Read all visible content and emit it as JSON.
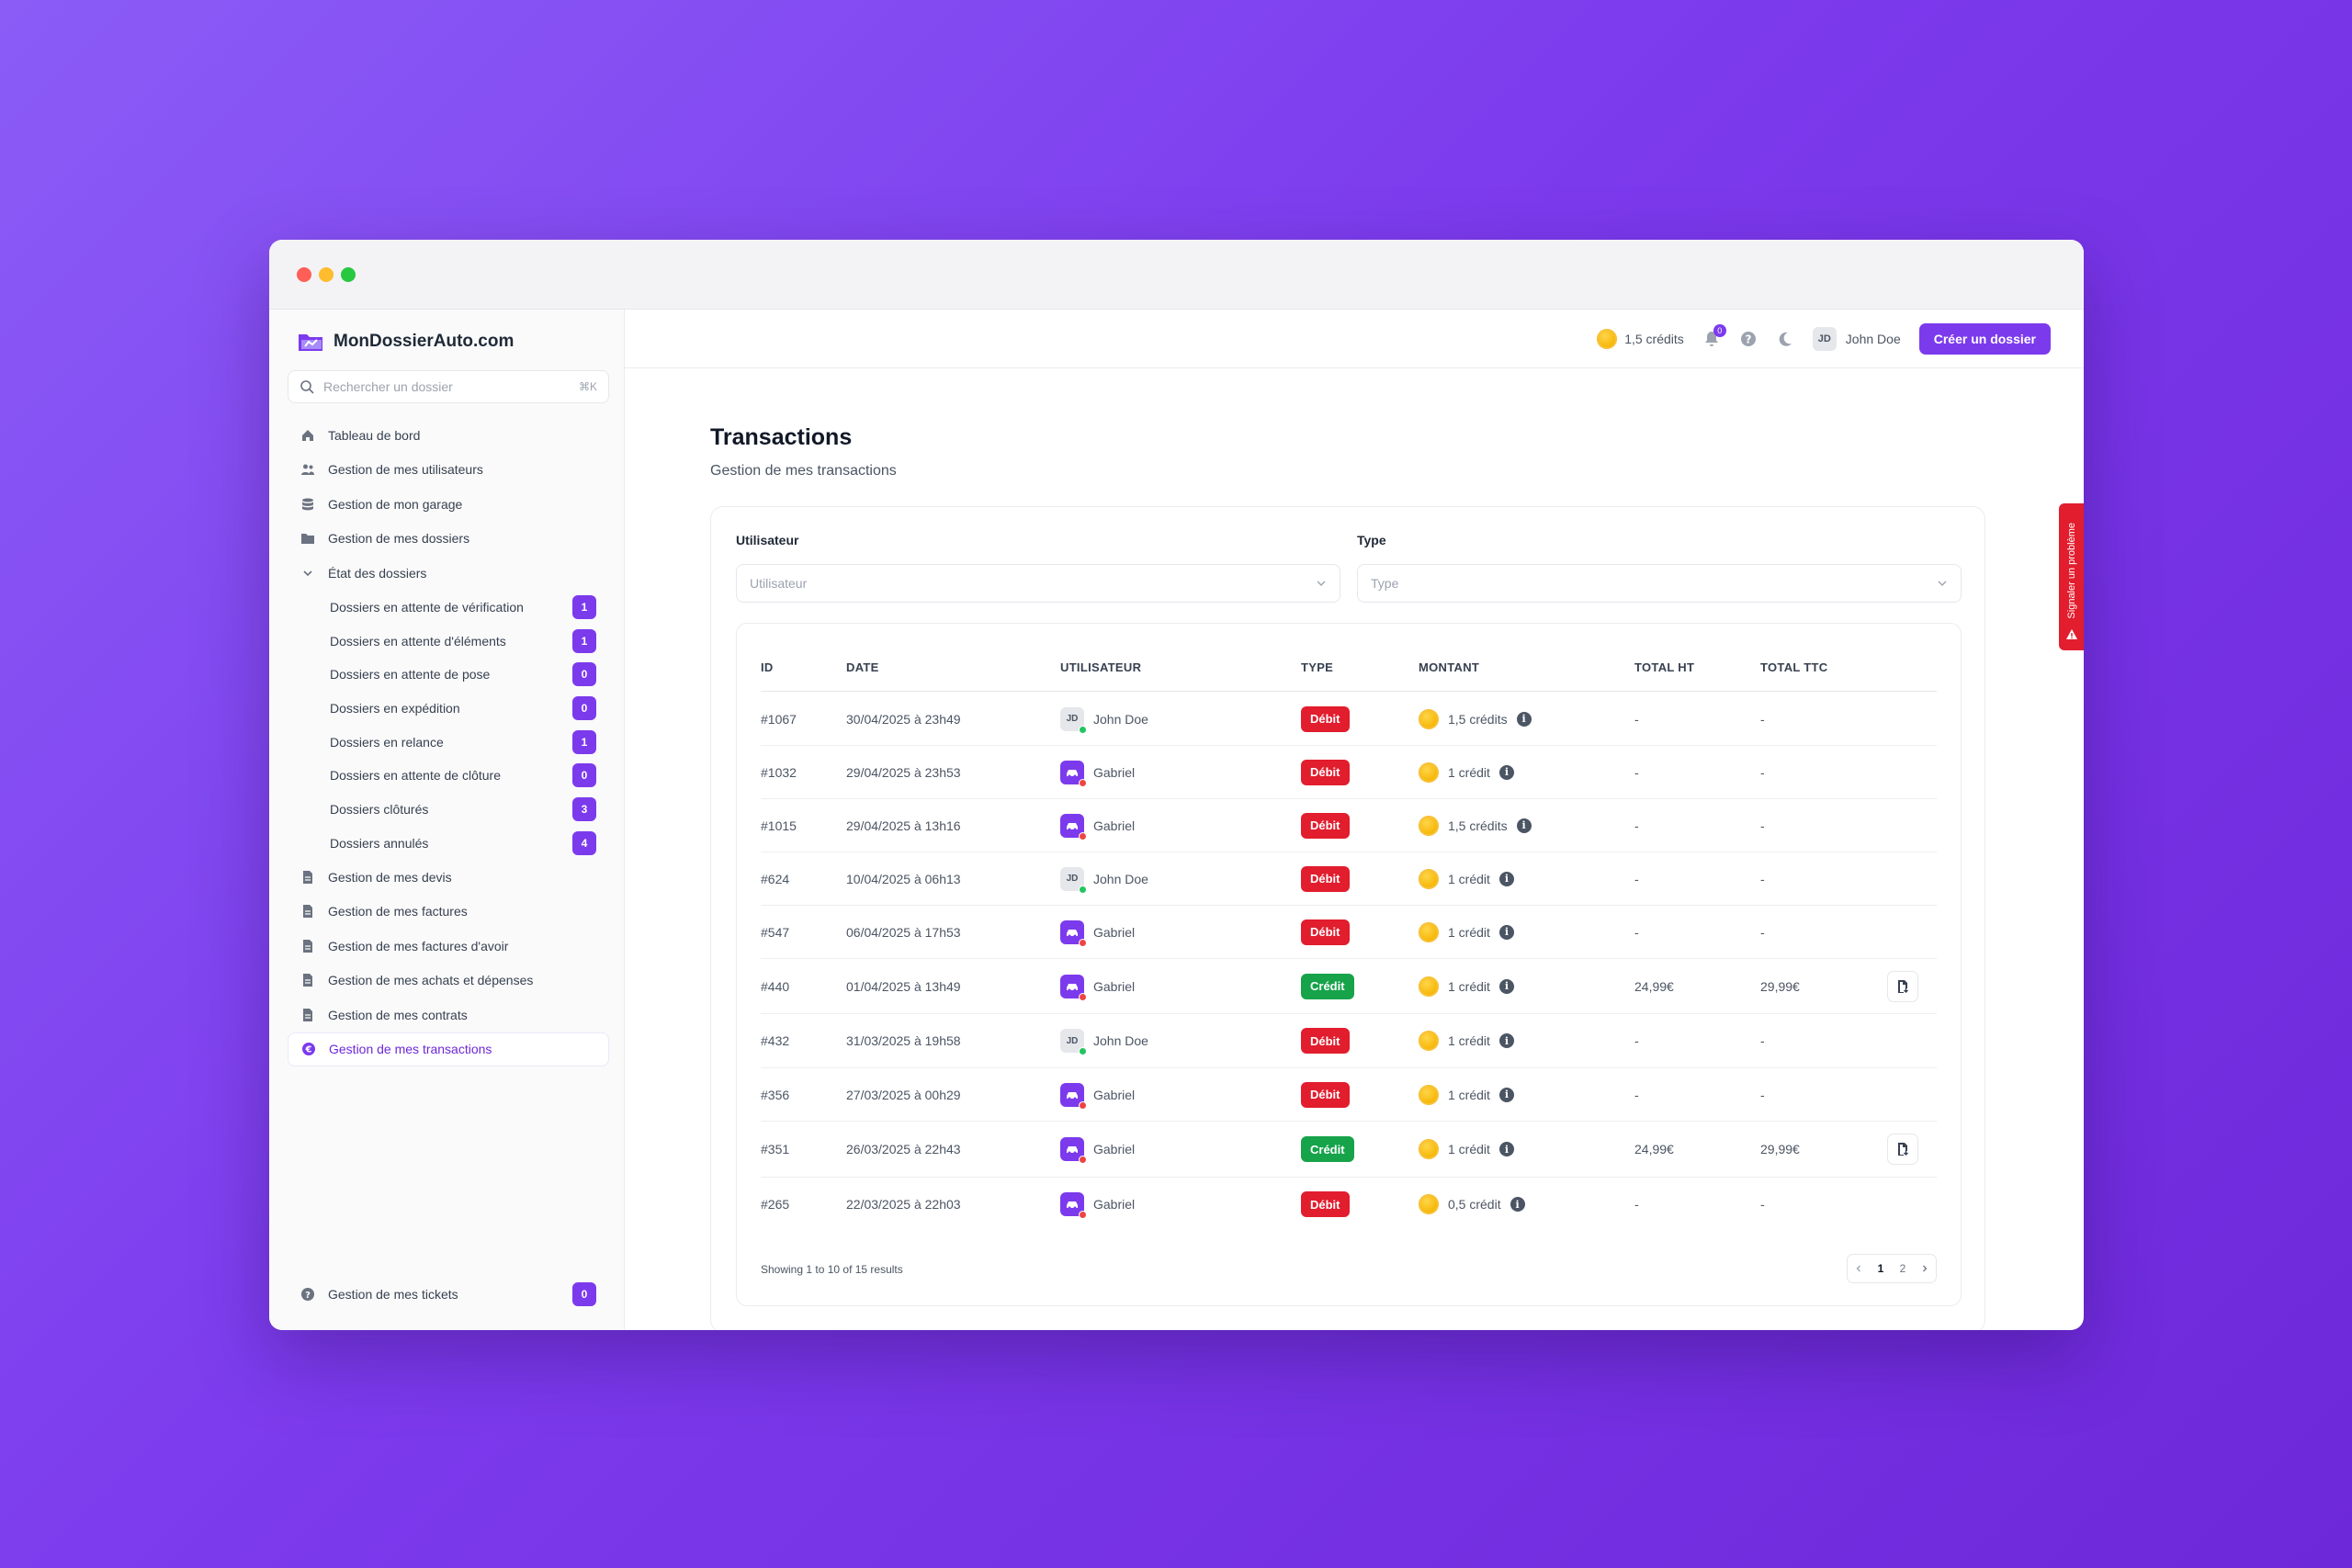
{
  "brand": {
    "name": "MonDossierAuto.com"
  },
  "search": {
    "placeholder": "Rechercher un dossier",
    "shortcut": "⌘K"
  },
  "sidebar": {
    "items": [
      {
        "label": "Tableau de bord",
        "icon": "home-icon"
      },
      {
        "label": "Gestion de mes utilisateurs",
        "icon": "users-icon"
      },
      {
        "label": "Gestion de mon garage",
        "icon": "database-icon"
      },
      {
        "label": "Gestion de mes dossiers",
        "icon": "folder-icon"
      },
      {
        "label": "État des dossiers",
        "icon": "chevron-down-icon"
      }
    ],
    "sub_items": [
      {
        "label": "Dossiers en attente de vérification",
        "count": "1"
      },
      {
        "label": "Dossiers en attente d'éléments",
        "count": "1"
      },
      {
        "label": "Dossiers en attente de pose",
        "count": "0"
      },
      {
        "label": "Dossiers en expédition",
        "count": "0"
      },
      {
        "label": "Dossiers en relance",
        "count": "1"
      },
      {
        "label": "Dossiers en attente de clôture",
        "count": "0"
      },
      {
        "label": "Dossiers clôturés",
        "count": "3"
      },
      {
        "label": "Dossiers annulés",
        "count": "4"
      }
    ],
    "items_bottom": [
      {
        "label": "Gestion de mes devis",
        "icon": "document-icon"
      },
      {
        "label": "Gestion de mes factures",
        "icon": "document-icon"
      },
      {
        "label": "Gestion de mes factures d'avoir",
        "icon": "document-icon"
      },
      {
        "label": "Gestion de mes achats et dépenses",
        "icon": "document-icon"
      },
      {
        "label": "Gestion de mes contrats",
        "icon": "document-icon"
      },
      {
        "label": "Gestion de mes transactions",
        "icon": "coin-icon",
        "active": true
      }
    ],
    "tickets": {
      "label": "Gestion de mes tickets",
      "count": "0"
    }
  },
  "topbar": {
    "credits": "1,5 crédits",
    "notifications_count": "0",
    "user_initials": "JD",
    "user_name": "John Doe",
    "create_button": "Créer un dossier"
  },
  "page": {
    "title": "Transactions",
    "subtitle": "Gestion de mes transactions"
  },
  "filters": {
    "user": {
      "label": "Utilisateur",
      "placeholder": "Utilisateur"
    },
    "type": {
      "label": "Type",
      "placeholder": "Type"
    }
  },
  "table": {
    "headers": [
      "ID",
      "DATE",
      "UTILISATEUR",
      "TYPE",
      "MONTANT",
      "TOTAL HT",
      "TOTAL TTC"
    ],
    "rows": [
      {
        "id": "#1067",
        "date": "30/04/2025 à 23h49",
        "user": "John Doe",
        "avatar": "jd",
        "type": "Débit",
        "kind": "debit",
        "amount": "1,5 crédits",
        "ht": "-",
        "ttc": "-",
        "invoice": false
      },
      {
        "id": "#1032",
        "date": "29/04/2025 à 23h53",
        "user": "Gabriel",
        "avatar": "gb",
        "type": "Débit",
        "kind": "debit",
        "amount": "1 crédit",
        "ht": "-",
        "ttc": "-",
        "invoice": false
      },
      {
        "id": "#1015",
        "date": "29/04/2025 à 13h16",
        "user": "Gabriel",
        "avatar": "gb",
        "type": "Débit",
        "kind": "debit",
        "amount": "1,5 crédits",
        "ht": "-",
        "ttc": "-",
        "invoice": false
      },
      {
        "id": "#624",
        "date": "10/04/2025 à 06h13",
        "user": "John Doe",
        "avatar": "jd",
        "type": "Débit",
        "kind": "debit",
        "amount": "1 crédit",
        "ht": "-",
        "ttc": "-",
        "invoice": false
      },
      {
        "id": "#547",
        "date": "06/04/2025 à 17h53",
        "user": "Gabriel",
        "avatar": "gb",
        "type": "Débit",
        "kind": "debit",
        "amount": "1 crédit",
        "ht": "-",
        "ttc": "-",
        "invoice": false
      },
      {
        "id": "#440",
        "date": "01/04/2025 à 13h49",
        "user": "Gabriel",
        "avatar": "gb",
        "type": "Crédit",
        "kind": "credit",
        "amount": "1 crédit",
        "ht": "24,99€",
        "ttc": "29,99€",
        "invoice": true
      },
      {
        "id": "#432",
        "date": "31/03/2025 à 19h58",
        "user": "John Doe",
        "avatar": "jd",
        "type": "Débit",
        "kind": "debit",
        "amount": "1 crédit",
        "ht": "-",
        "ttc": "-",
        "invoice": false
      },
      {
        "id": "#356",
        "date": "27/03/2025 à 00h29",
        "user": "Gabriel",
        "avatar": "gb",
        "type": "Débit",
        "kind": "debit",
        "amount": "1 crédit",
        "ht": "-",
        "ttc": "-",
        "invoice": false
      },
      {
        "id": "#351",
        "date": "26/03/2025 à 22h43",
        "user": "Gabriel",
        "avatar": "gb",
        "type": "Crédit",
        "kind": "credit",
        "amount": "1 crédit",
        "ht": "24,99€",
        "ttc": "29,99€",
        "invoice": true
      },
      {
        "id": "#265",
        "date": "22/03/2025 à 22h03",
        "user": "Gabriel",
        "avatar": "gb",
        "type": "Débit",
        "kind": "debit",
        "amount": "0,5 crédit",
        "ht": "-",
        "ttc": "-",
        "invoice": false
      }
    ],
    "footer": "Showing 1 to 10 of 15 results",
    "pages": [
      "1",
      "2"
    ],
    "current_page": "1"
  },
  "report_tab": {
    "label": "Signaler un problème"
  },
  "colors": {
    "accent": "#7c3aed",
    "debit": "#e11d2e",
    "credit": "#16a34a"
  }
}
